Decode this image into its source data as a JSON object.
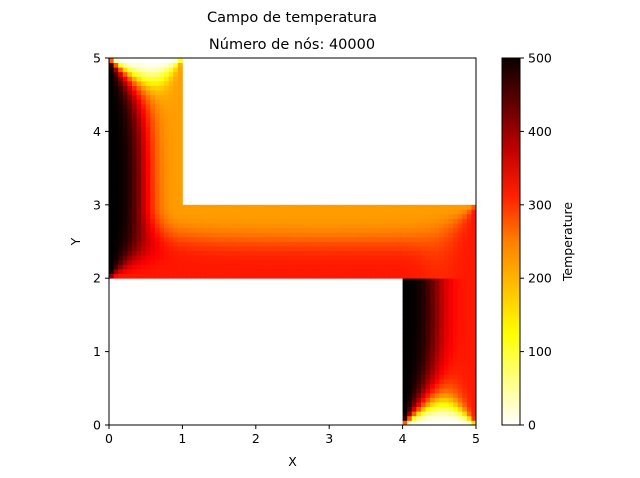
{
  "chart_data": {
    "type": "heatmap",
    "title": "Campo de temperatura",
    "subtitle": "Número de nós: 40000",
    "xlabel": "X",
    "ylabel": "Y",
    "xlim": [
      0,
      5
    ],
    "ylim": [
      0,
      5
    ],
    "x_ticks": [
      "0",
      "1",
      "2",
      "3",
      "4",
      "5"
    ],
    "y_ticks": [
      "0",
      "1",
      "2",
      "3",
      "4",
      "5"
    ],
    "colormap": "hot_r",
    "colorbar": {
      "label": "Temperature",
      "range": [
        0,
        500
      ],
      "ticks": [
        "0",
        "100",
        "200",
        "300",
        "400",
        "500"
      ],
      "placement": "right"
    },
    "domain_regions": [
      {
        "x": [
          0,
          1
        ],
        "y": [
          2,
          5
        ]
      },
      {
        "x": [
          1,
          5
        ],
        "y": [
          2,
          3
        ]
      },
      {
        "x": [
          4,
          5
        ],
        "y": [
          0,
          3
        ]
      }
    ],
    "boundary_temperatures": [
      {
        "edge": "x=0, y 2..5",
        "value": 500
      },
      {
        "edge": "x=4, y 0..2",
        "value": 500
      },
      {
        "edge": "y=2, x 0..4",
        "value": 300
      },
      {
        "edge": "x=1, y 3..5",
        "value": 200
      },
      {
        "edge": "y=3, x 1..5",
        "value": 200
      },
      {
        "edge": "x=5, y 0..3",
        "value": 300
      },
      {
        "edge": "y=5, x 0..1",
        "value": 0
      },
      {
        "edge": "y=0, x 4..5",
        "value": 0
      }
    ]
  }
}
